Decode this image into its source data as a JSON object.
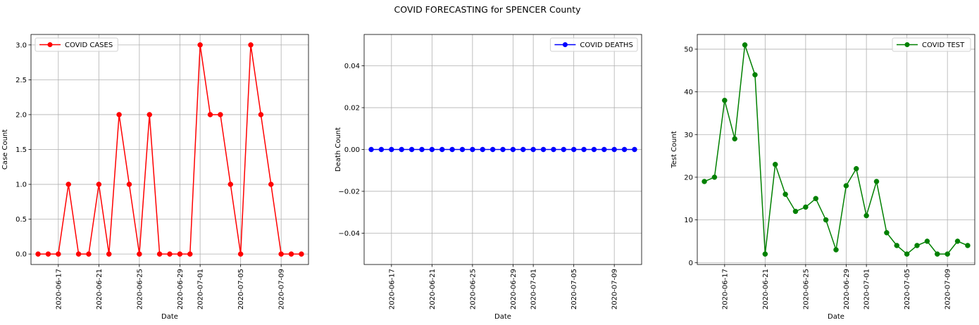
{
  "title": "COVID FORECASTING for SPENCER County",
  "chart_data": [
    {
      "type": "line",
      "series": [
        {
          "name": "COVID CASES",
          "color": "#ff0000",
          "x": [
            "2020-06-15",
            "2020-06-16",
            "2020-06-17",
            "2020-06-18",
            "2020-06-19",
            "2020-06-20",
            "2020-06-21",
            "2020-06-22",
            "2020-06-23",
            "2020-06-24",
            "2020-06-25",
            "2020-06-26",
            "2020-06-27",
            "2020-06-28",
            "2020-06-29",
            "2020-06-30",
            "2020-07-01",
            "2020-07-02",
            "2020-07-03",
            "2020-07-04",
            "2020-07-05",
            "2020-07-06",
            "2020-07-07",
            "2020-07-08",
            "2020-07-09",
            "2020-07-10",
            "2020-07-11"
          ],
          "values": [
            0,
            0,
            0,
            1,
            0,
            0,
            1,
            0,
            2,
            1,
            0,
            2,
            0,
            0,
            0,
            0,
            3,
            2,
            2,
            1,
            0,
            3,
            2,
            1,
            0,
            0,
            0
          ]
        }
      ],
      "xlabel": "Date",
      "ylabel": "Case Count",
      "xticks": [
        "2020-06-17",
        "2020-06-21",
        "2020-06-25",
        "2020-06-29",
        "2020-07-01",
        "2020-07-05",
        "2020-07-09"
      ],
      "yticks": [
        0.0,
        0.5,
        1.0,
        1.5,
        2.0,
        2.5,
        3.0
      ],
      "ylim": [
        -0.15,
        3.15
      ],
      "xlim": [
        "2020-06-14T07:12",
        "2020-07-11T16:48"
      ],
      "legend": "upper-left",
      "grid": true
    },
    {
      "type": "line",
      "series": [
        {
          "name": "COVID DEATHS",
          "color": "#0000ff",
          "x": [
            "2020-06-15",
            "2020-06-16",
            "2020-06-17",
            "2020-06-18",
            "2020-06-19",
            "2020-06-20",
            "2020-06-21",
            "2020-06-22",
            "2020-06-23",
            "2020-06-24",
            "2020-06-25",
            "2020-06-26",
            "2020-06-27",
            "2020-06-28",
            "2020-06-29",
            "2020-06-30",
            "2020-07-01",
            "2020-07-02",
            "2020-07-03",
            "2020-07-04",
            "2020-07-05",
            "2020-07-06",
            "2020-07-07",
            "2020-07-08",
            "2020-07-09",
            "2020-07-10",
            "2020-07-11"
          ],
          "values": [
            0,
            0,
            0,
            0,
            0,
            0,
            0,
            0,
            0,
            0,
            0,
            0,
            0,
            0,
            0,
            0,
            0,
            0,
            0,
            0,
            0,
            0,
            0,
            0,
            0,
            0,
            0
          ]
        }
      ],
      "xlabel": "Date",
      "ylabel": "Death Count",
      "xticks": [
        "2020-06-17",
        "2020-06-21",
        "2020-06-25",
        "2020-06-29",
        "2020-07-01",
        "2020-07-05",
        "2020-07-09"
      ],
      "yticks": [
        -0.04,
        -0.02,
        0.0,
        0.02,
        0.04
      ],
      "ytick_labels": [
        "−0.04",
        "−0.02",
        "0.00",
        "0.02",
        "0.04"
      ],
      "ylim": [
        -0.055,
        0.055
      ],
      "xlim": [
        "2020-06-14T07:12",
        "2020-07-11T16:48"
      ],
      "legend": "upper-right",
      "grid": true
    },
    {
      "type": "line",
      "series": [
        {
          "name": "COVID TEST",
          "color": "#008000",
          "x": [
            "2020-06-15",
            "2020-06-16",
            "2020-06-17",
            "2020-06-18",
            "2020-06-19",
            "2020-06-20",
            "2020-06-21",
            "2020-06-22",
            "2020-06-23",
            "2020-06-24",
            "2020-06-25",
            "2020-06-26",
            "2020-06-27",
            "2020-06-28",
            "2020-06-29",
            "2020-06-30",
            "2020-07-01",
            "2020-07-02",
            "2020-07-03",
            "2020-07-04",
            "2020-07-05",
            "2020-07-06",
            "2020-07-07",
            "2020-07-08",
            "2020-07-09",
            "2020-07-10",
            "2020-07-11"
          ],
          "values": [
            19,
            20,
            38,
            29,
            51,
            44,
            2,
            23,
            16,
            12,
            13,
            15,
            10,
            3,
            18,
            22,
            11,
            19,
            7,
            4,
            2,
            4,
            5,
            2,
            2,
            5,
            4
          ]
        }
      ],
      "xlabel": "Date",
      "ylabel": "Test Count",
      "xticks": [
        "2020-06-17",
        "2020-06-21",
        "2020-06-25",
        "2020-06-29",
        "2020-07-01",
        "2020-07-05",
        "2020-07-09"
      ],
      "yticks": [
        0,
        10,
        20,
        30,
        40,
        50
      ],
      "ylim": [
        -0.45,
        53.45
      ],
      "xlim": [
        "2020-06-14T07:12",
        "2020-07-11T16:48"
      ],
      "legend": "upper-right",
      "grid": true
    }
  ]
}
